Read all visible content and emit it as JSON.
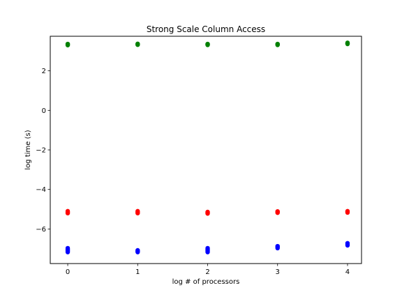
{
  "chart_data": {
    "type": "scatter",
    "title": "Strong Scale Column Access",
    "xlabel": "log # of processors",
    "ylabel": "log time (s)",
    "xlim": [
      -0.25,
      4.2
    ],
    "ylim": [
      -7.75,
      3.75
    ],
    "xticks": [
      0,
      1,
      2,
      3,
      4
    ],
    "yticks": [
      -6,
      -4,
      -2,
      0,
      2
    ],
    "ytick_labels": [
      "−6",
      "−4",
      "−2",
      "0",
      "2"
    ],
    "xtick_labels": [
      "0",
      "1",
      "2",
      "3",
      "4"
    ],
    "grid": false,
    "legend": "none",
    "series": [
      {
        "color": "#008000",
        "points": [
          [
            0,
            3.3
          ],
          [
            0,
            3.33
          ],
          [
            0,
            3.36
          ],
          [
            1,
            3.32
          ],
          [
            1,
            3.35
          ],
          [
            1,
            3.37
          ],
          [
            2,
            3.31
          ],
          [
            2,
            3.34
          ],
          [
            2,
            3.36
          ],
          [
            3,
            3.31
          ],
          [
            3,
            3.34
          ],
          [
            3,
            3.36
          ],
          [
            4,
            3.36
          ],
          [
            4,
            3.39
          ],
          [
            4,
            3.42
          ]
        ]
      },
      {
        "color": "#ff0000",
        "points": [
          [
            0,
            -5.2
          ],
          [
            0,
            -5.15
          ],
          [
            0,
            -5.1
          ],
          [
            1,
            -5.2
          ],
          [
            1,
            -5.15
          ],
          [
            1,
            -5.1
          ],
          [
            2,
            -5.22
          ],
          [
            2,
            -5.18
          ],
          [
            2,
            -5.14
          ],
          [
            3,
            -5.18
          ],
          [
            3,
            -5.14
          ],
          [
            3,
            -5.11
          ],
          [
            4,
            -5.17
          ],
          [
            4,
            -5.13
          ],
          [
            4,
            -5.1
          ]
        ]
      },
      {
        "color": "#0000ff",
        "points": [
          [
            0,
            -7.17
          ],
          [
            0,
            -7.1
          ],
          [
            0,
            -7.03
          ],
          [
            0,
            -6.97
          ],
          [
            1,
            -7.17
          ],
          [
            1,
            -7.13
          ],
          [
            1,
            -7.08
          ],
          [
            2,
            -7.17
          ],
          [
            2,
            -7.1
          ],
          [
            2,
            -7.03
          ],
          [
            2,
            -6.97
          ],
          [
            3,
            -6.97
          ],
          [
            3,
            -6.92
          ],
          [
            3,
            -6.87
          ],
          [
            4,
            -6.83
          ],
          [
            4,
            -6.77
          ],
          [
            4,
            -6.72
          ]
        ]
      }
    ]
  }
}
